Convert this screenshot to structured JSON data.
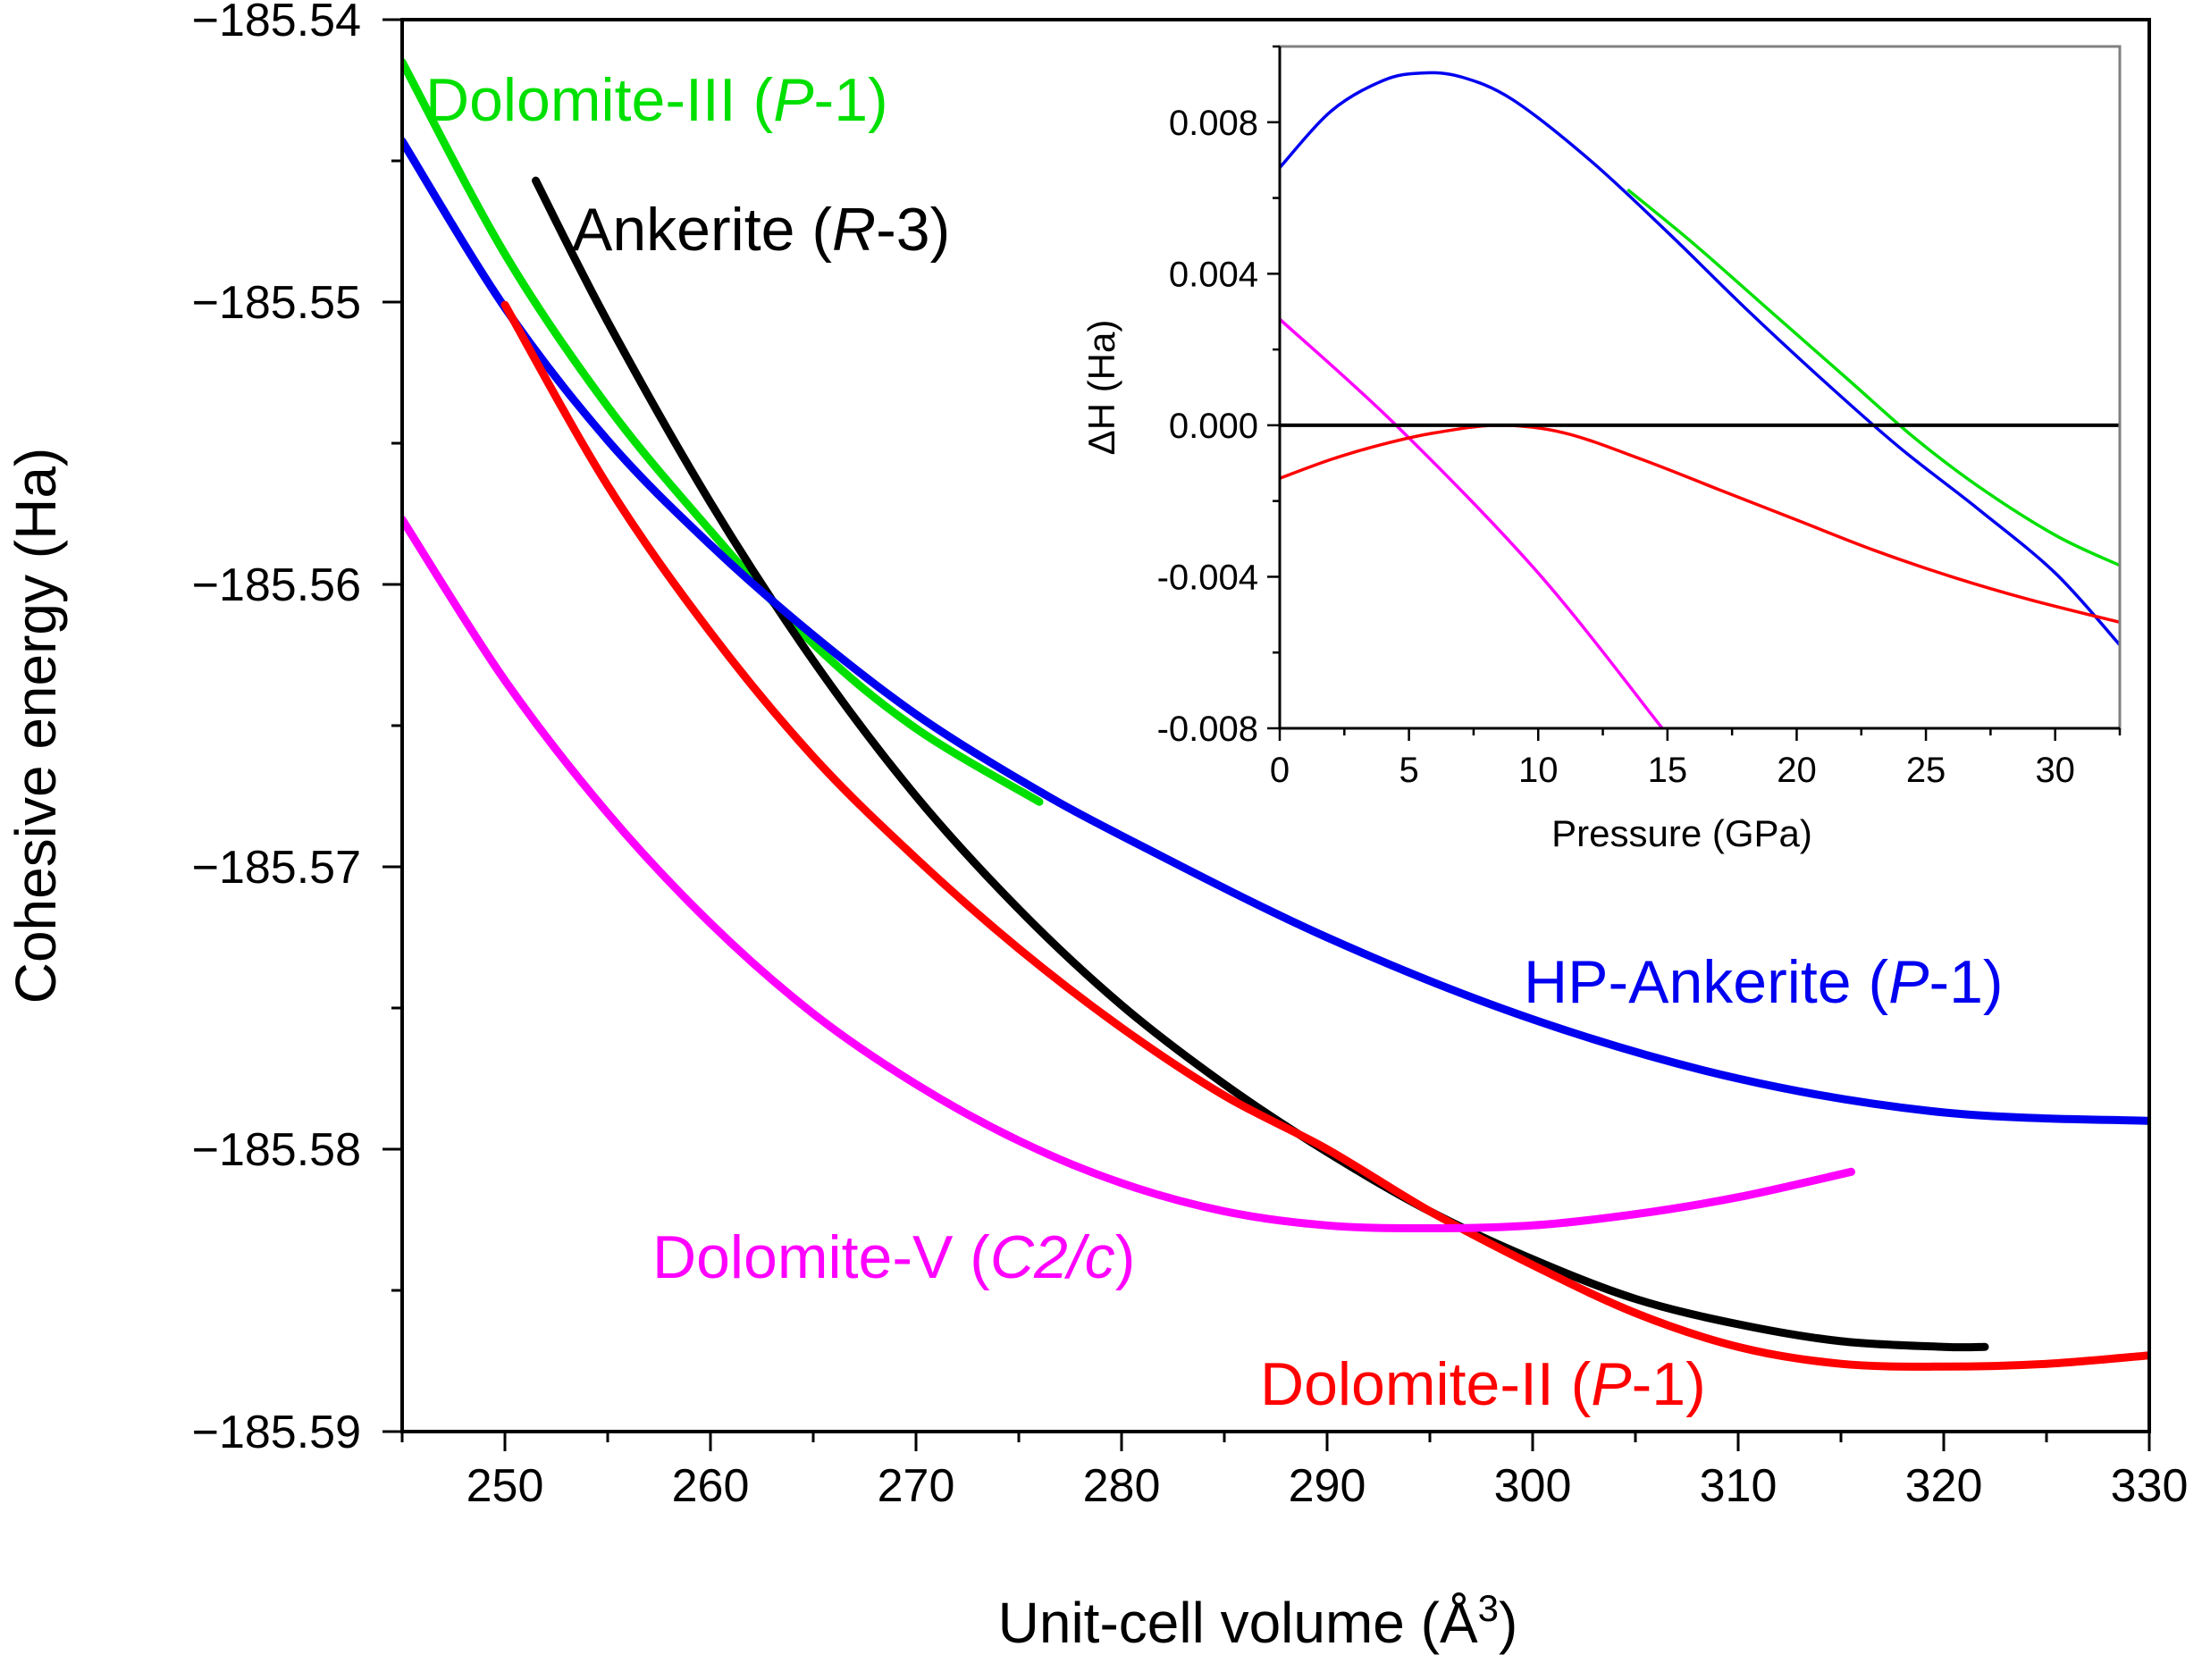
{
  "chart_data": [
    {
      "type": "line",
      "xlabel": "Unit-cell volume (Å",
      "xlabel_sup": "3",
      "xlabel_end": ")",
      "ylabel": "Cohesive energy (Ha)",
      "xlim": [
        245,
        330
      ],
      "ylim": [
        -185.59,
        -185.54
      ],
      "xticks": [
        250,
        260,
        270,
        280,
        290,
        300,
        310,
        320,
        330
      ],
      "xtick_labels": [
        "250",
        "260",
        "270",
        "280",
        "290",
        "300",
        "310",
        "320",
        "330"
      ],
      "yticks": [
        -185.54,
        -185.55,
        -185.56,
        -185.57,
        -185.58,
        -185.59
      ],
      "ytick_labels": [
        "−185.54",
        "−185.55",
        "−185.56",
        "−185.57",
        "−185.58",
        "−185.59"
      ],
      "series": [
        {
          "name": "Dolomite-III",
          "label_main": "Dolomite-III (",
          "label_italic": "P",
          "label_end": "-1)",
          "color": "#00e000",
          "x": [
            245,
            250,
            255,
            260,
            265,
            270,
            276
          ],
          "y": [
            -185.5415,
            -185.5483,
            -185.5537,
            -185.5581,
            -185.5621,
            -185.5651,
            -185.5677
          ]
        },
        {
          "name": "Ankerite",
          "label_main": "Ankerite (",
          "label_italic": "R",
          "label_end": "-3)",
          "color": "#000000",
          "x": [
            251.5,
            255,
            260,
            265,
            270,
            275,
            280,
            285,
            290,
            295,
            300,
            305,
            310,
            315,
            320,
            322
          ],
          "y": [
            -185.5457,
            -185.5507,
            -185.5571,
            -185.5627,
            -185.5675,
            -185.5715,
            -185.5749,
            -185.5777,
            -185.5801,
            -185.5822,
            -185.5839,
            -185.5853,
            -185.5862,
            -185.5868,
            -185.587,
            -185.587
          ]
        },
        {
          "name": "HP-Ankerite",
          "label_main": "HP-Ankerite (",
          "label_italic": "P",
          "label_end": "-1)",
          "color": "#0000f0",
          "x": [
            245,
            250,
            255,
            260,
            265,
            270,
            275,
            280,
            290,
            300,
            310,
            320,
            330
          ],
          "y": [
            -185.5443,
            -185.5502,
            -185.5549,
            -185.5586,
            -185.5618,
            -185.5646,
            -185.5669,
            -185.5689,
            -185.5725,
            -185.5754,
            -185.5775,
            -185.5787,
            -185.579
          ]
        },
        {
          "name": "Dolomite-II",
          "label_main": "Dolomite-II (",
          "label_italic": "P",
          "label_end": "-1)",
          "color": "#ff0000",
          "x": [
            250,
            255,
            260,
            265,
            270,
            275,
            280,
            285,
            290,
            295,
            300,
            305,
            310,
            315,
            320,
            325,
            330
          ],
          "y": [
            -185.5501,
            -185.5565,
            -185.5617,
            -185.5661,
            -185.5697,
            -185.5729,
            -185.5757,
            -185.5781,
            -185.58,
            -185.5822,
            -185.5841,
            -185.5858,
            -185.587,
            -185.5876,
            -185.5877,
            -185.5876,
            -185.5873
          ]
        },
        {
          "name": "Dolomite-V",
          "label_main": "Dolomite-V (",
          "label_italic": "C2/c",
          "label_end": ")",
          "color": "#ff00ff",
          "x": [
            245,
            250,
            255,
            260,
            265,
            270,
            275,
            280,
            285,
            290,
            295,
            300,
            305,
            310,
            315.5
          ],
          "y": [
            -185.5577,
            -185.5634,
            -185.5681,
            -185.572,
            -185.5752,
            -185.5777,
            -185.5797,
            -185.5812,
            -185.5822,
            -185.5827,
            -185.5828,
            -185.5827,
            -185.5823,
            -185.5817,
            -185.5808
          ]
        }
      ]
    },
    {
      "type": "line",
      "inset": true,
      "xlabel": "Pressure (GPa)",
      "ylabel": "ΔH (Ha)",
      "xlim": [
        0,
        32.5
      ],
      "ylim": [
        -0.008,
        0.01
      ],
      "xticks": [
        0,
        5,
        10,
        15,
        20,
        25,
        30
      ],
      "xtick_labels": [
        "0",
        "5",
        "10",
        "15",
        "20",
        "25",
        "30"
      ],
      "yticks": [
        0.008,
        0.004,
        0.0,
        -0.004,
        -0.008
      ],
      "ytick_labels": [
        "0.008",
        "0.004",
        "0.000",
        "-0.004",
        "-0.008"
      ],
      "series": [
        {
          "name": "HP-Ankerite",
          "color": "#0000f0",
          "x": [
            0,
            2,
            4,
            5.5,
            7,
            9,
            12,
            15,
            18,
            21,
            24,
            27,
            30,
            32.5
          ],
          "y": [
            0.0068,
            0.0083,
            0.0091,
            0.0093,
            0.0092,
            0.0086,
            0.007,
            0.0051,
            0.0031,
            0.0012,
            -0.0006,
            -0.0022,
            -0.0039,
            -0.0058
          ]
        },
        {
          "name": "Dolomite-III",
          "color": "#00e000",
          "x": [
            13.5,
            16,
            19,
            22,
            24.5,
            27,
            30,
            32.5
          ],
          "y": [
            0.0062,
            0.0048,
            0.003,
            0.0012,
            -0.0003,
            -0.0016,
            -0.0029,
            -0.0037
          ]
        },
        {
          "name": "Dolomite-V",
          "color": "#ff00ff",
          "x": [
            0,
            4.5,
            10,
            14.8
          ],
          "y": [
            0.0028,
            0.0,
            -0.0039,
            -0.008
          ]
        },
        {
          "name": "Dolomite-II",
          "color": "#ff0000",
          "x": [
            0,
            2,
            4,
            6,
            8.5,
            11,
            14,
            17,
            20,
            23,
            26,
            29,
            32.5
          ],
          "y": [
            -0.0014,
            -0.0009,
            -0.0005,
            -0.0002,
            0.0,
            -0.0002,
            -0.0009,
            -0.0017,
            -0.0025,
            -0.0033,
            -0.004,
            -0.0046,
            -0.0052
          ]
        },
        {
          "name": "Ankerite",
          "color": "#000000",
          "x": [
            0,
            32.5
          ],
          "y": [
            0.0,
            0.0
          ]
        }
      ]
    }
  ]
}
